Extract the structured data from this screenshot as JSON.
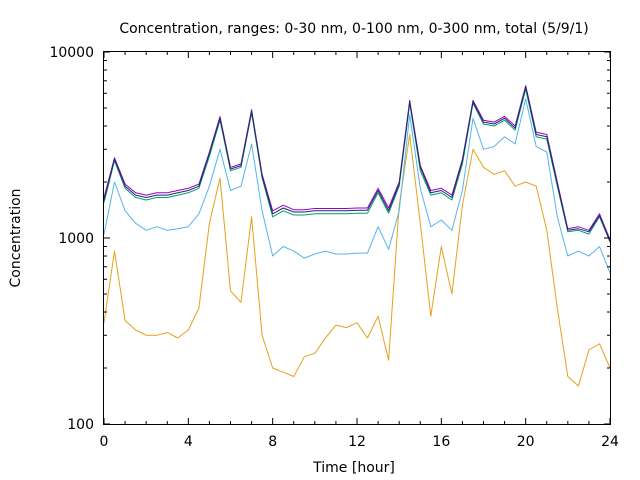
{
  "chart_data": {
    "type": "line",
    "title": "Concentration, ranges: 0-30 nm, 0-100 nm, 0-300 nm, total (5/9/1)",
    "xlabel": "Time [hour]",
    "ylabel": "Concentration",
    "xlim": [
      0,
      24
    ],
    "ylim": [
      100,
      10000
    ],
    "yscale": "log",
    "grid": false,
    "legend": "none",
    "x_ticks": [
      0,
      4,
      8,
      12,
      16,
      20,
      24
    ],
    "x_tick_labels": [
      "0",
      "4",
      "8",
      "12",
      "16",
      "20",
      "24"
    ],
    "y_ticks": [
      100,
      1000,
      10000
    ],
    "y_tick_labels": [
      "100",
      "1000",
      "10000"
    ],
    "x": [
      0,
      0.5,
      1,
      1.5,
      2,
      2.5,
      3,
      3.5,
      4,
      4.5,
      5,
      5.5,
      6,
      6.5,
      7,
      7.5,
      8,
      8.5,
      9,
      9.5,
      10,
      10.5,
      11,
      11.5,
      12,
      12.5,
      13,
      13.5,
      14,
      14.5,
      15,
      15.5,
      16,
      16.5,
      17,
      17.5,
      18,
      18.5,
      19,
      19.5,
      20,
      20.5,
      21,
      21.5,
      22,
      22.5,
      23,
      23.5,
      24
    ],
    "series": [
      {
        "color": "#e5a11c",
        "values": [
          350,
          850,
          360,
          320,
          300,
          300,
          310,
          290,
          320,
          420,
          1200,
          2100,
          520,
          450,
          1300,
          300,
          200,
          190,
          180,
          230,
          240,
          290,
          340,
          330,
          350,
          290,
          380,
          220,
          1500,
          3600,
          1200,
          380,
          900,
          500,
          1500,
          3000,
          2400,
          2200,
          2300,
          1900,
          2000,
          1900,
          1100,
          420,
          180,
          160,
          250,
          270,
          200
        ]
      },
      {
        "color": "#56b4e9",
        "values": [
          1050,
          2000,
          1400,
          1200,
          1100,
          1150,
          1100,
          1120,
          1150,
          1350,
          1900,
          3000,
          1800,
          1900,
          3200,
          1400,
          800,
          900,
          850,
          780,
          820,
          850,
          820,
          820,
          830,
          830,
          1150,
          870,
          1400,
          4600,
          1850,
          1150,
          1250,
          1100,
          1800,
          4400,
          3000,
          3100,
          3500,
          3200,
          5600,
          3100,
          2900,
          1300,
          800,
          850,
          800,
          900,
          650
        ]
      },
      {
        "color": "#009e73",
        "values": [
          1550,
          2600,
          1850,
          1650,
          1600,
          1650,
          1650,
          1700,
          1750,
          1850,
          2750,
          4300,
          2300,
          2400,
          4700,
          2100,
          1300,
          1400,
          1330,
          1330,
          1350,
          1350,
          1350,
          1350,
          1360,
          1360,
          1750,
          1360,
          1900,
          5300,
          2300,
          1700,
          1750,
          1600,
          2500,
          5300,
          4100,
          4000,
          4300,
          3800,
          6300,
          3500,
          3400,
          1900,
          1080,
          1100,
          1050,
          1300,
          950
        ]
      },
      {
        "color": "#9400d3",
        "values": [
          1650,
          2700,
          1950,
          1750,
          1700,
          1750,
          1750,
          1800,
          1850,
          1950,
          2900,
          4500,
          2400,
          2500,
          4900,
          2200,
          1400,
          1500,
          1420,
          1420,
          1440,
          1440,
          1440,
          1440,
          1450,
          1450,
          1850,
          1450,
          2000,
          5500,
          2450,
          1800,
          1850,
          1700,
          2650,
          5500,
          4300,
          4200,
          4500,
          4000,
          6600,
          3700,
          3600,
          2000,
          1120,
          1150,
          1100,
          1350,
          980
        ]
      },
      {
        "color": "#1f2f5f",
        "values": [
          1600,
          2650,
          1900,
          1700,
          1650,
          1700,
          1700,
          1750,
          1800,
          1900,
          2850,
          4400,
          2350,
          2450,
          4800,
          2150,
          1350,
          1450,
          1380,
          1380,
          1400,
          1400,
          1400,
          1400,
          1410,
          1410,
          1800,
          1400,
          1950,
          5400,
          2400,
          1750,
          1800,
          1650,
          2600,
          5400,
          4200,
          4100,
          4400,
          3900,
          6500,
          3600,
          3500,
          1950,
          1100,
          1120,
          1080,
          1320,
          960
        ]
      }
    ]
  }
}
